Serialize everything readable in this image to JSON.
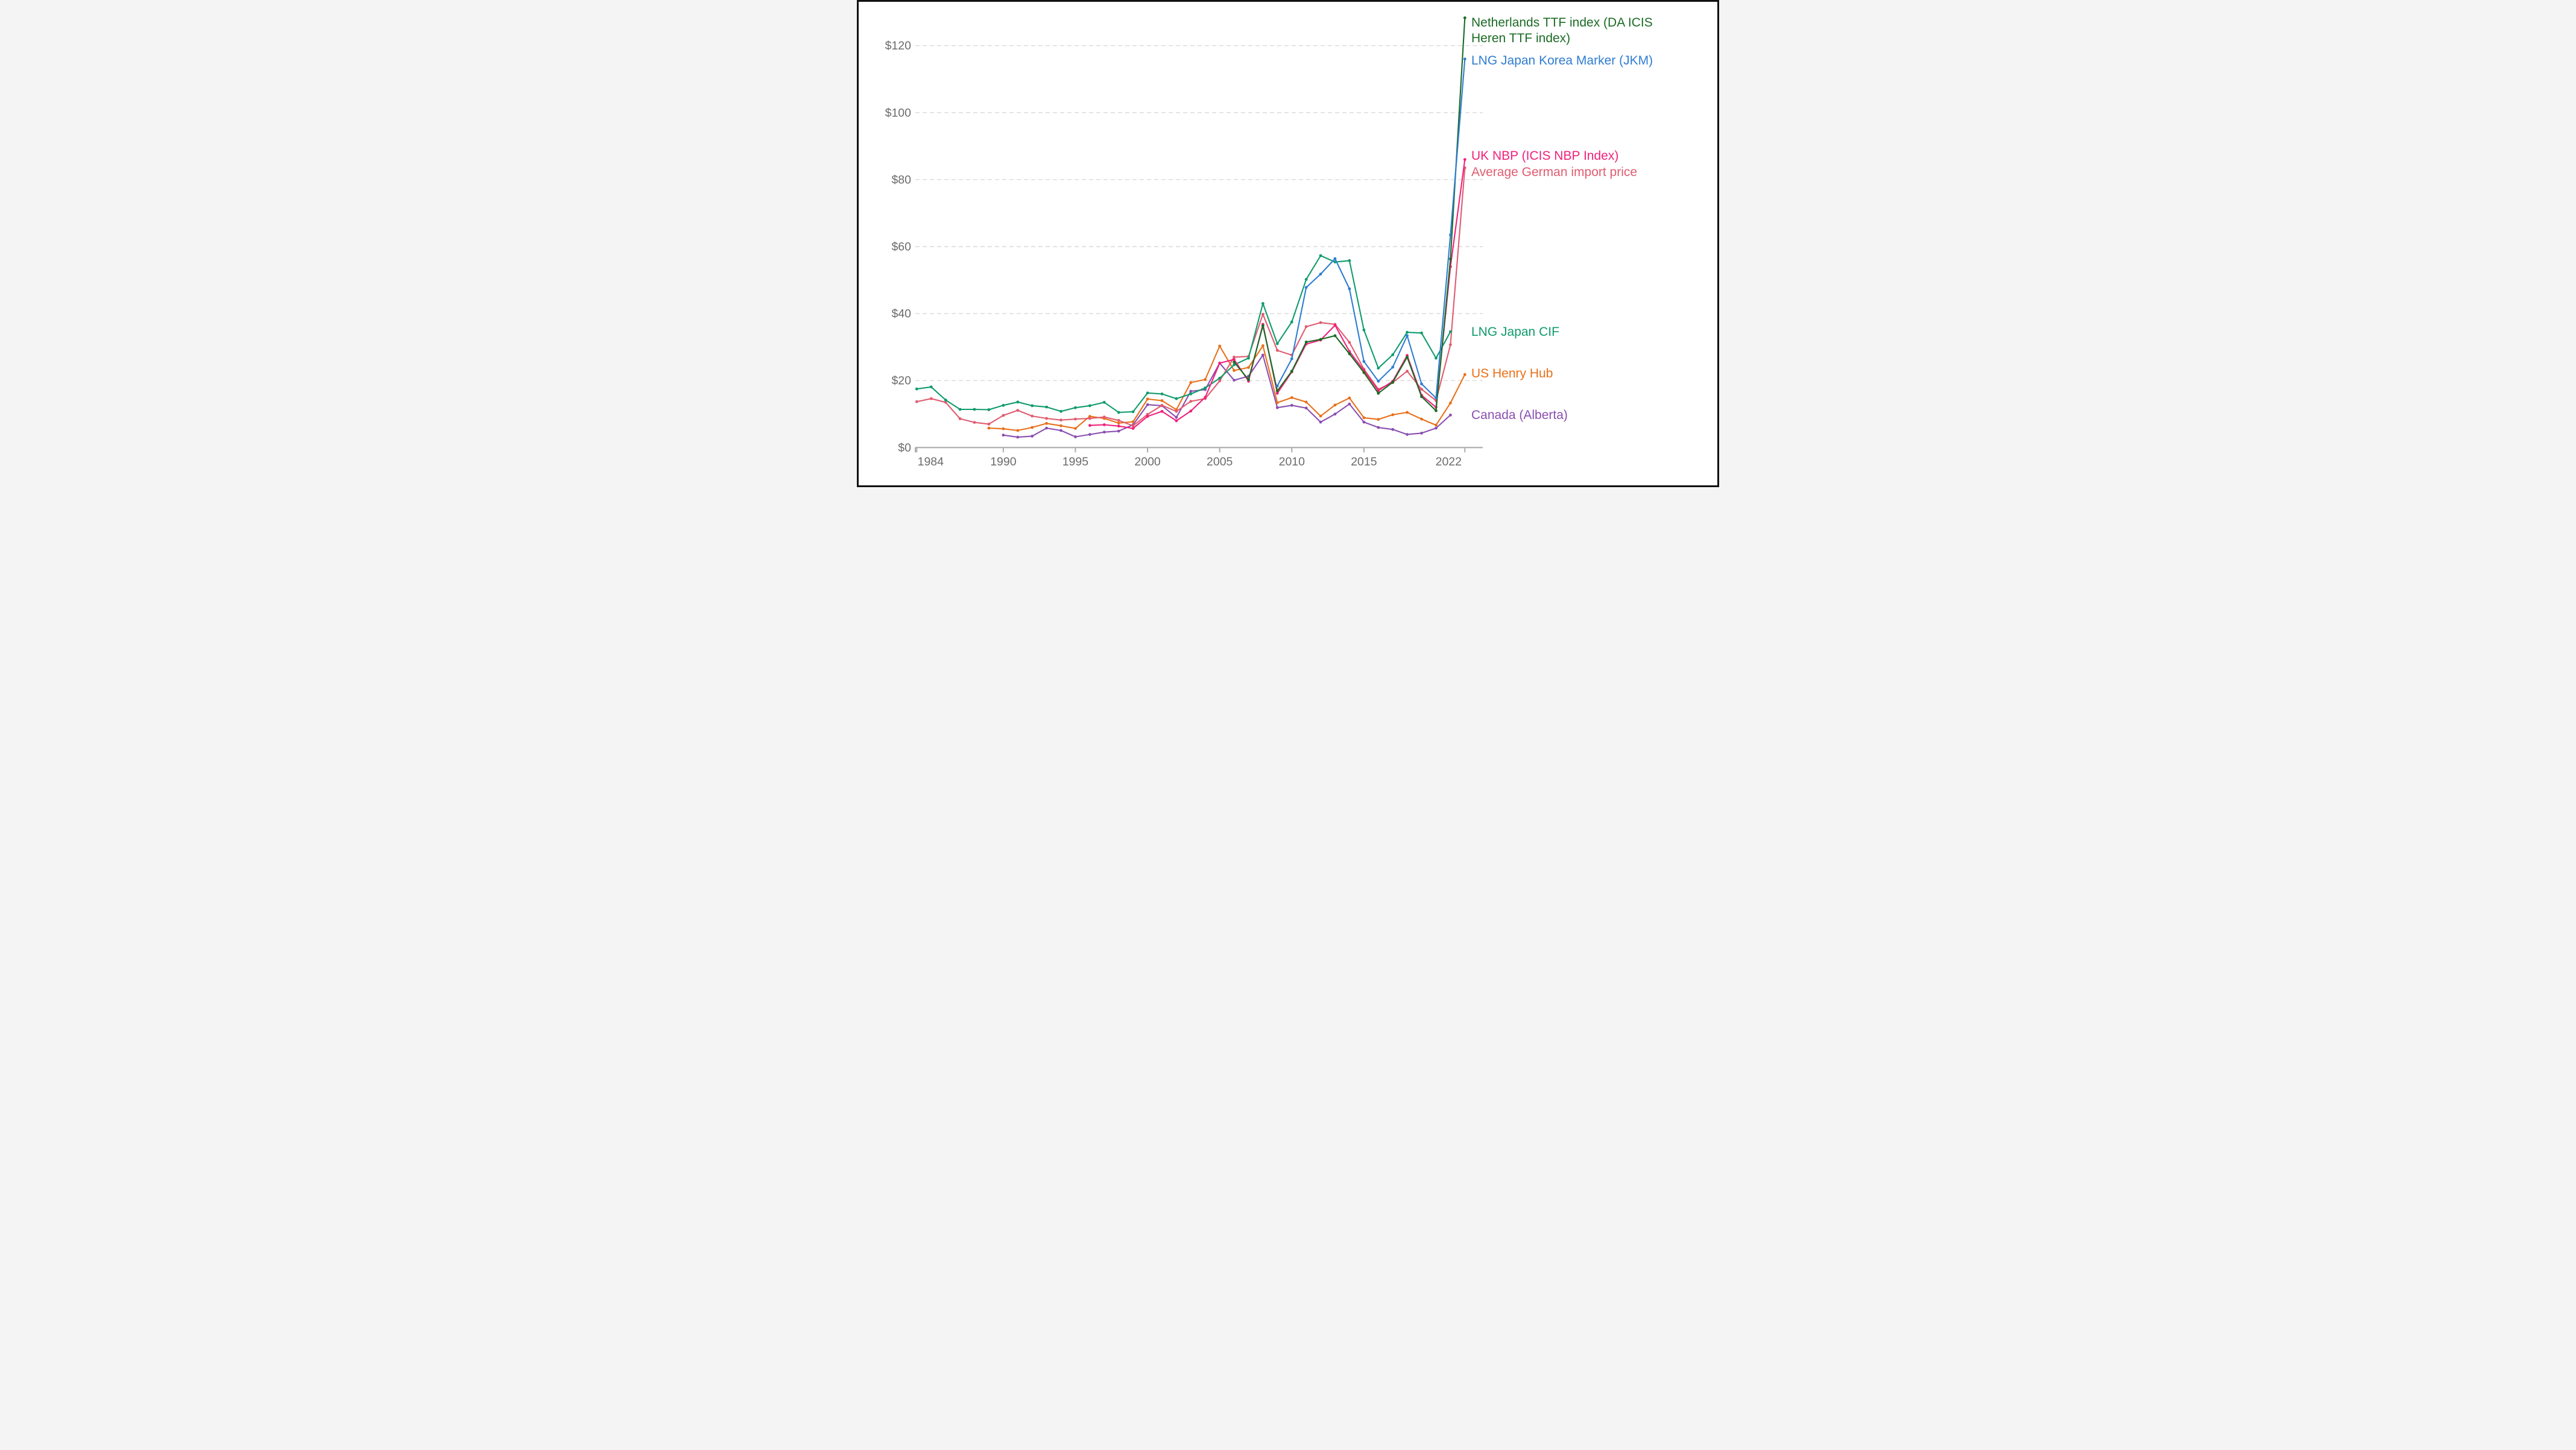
{
  "chart_data": {
    "type": "line",
    "title": "",
    "unit_prefix": "$",
    "x_axis": {
      "ticks": [
        1984,
        1990,
        1995,
        2000,
        2005,
        2010,
        2015,
        2022
      ],
      "tick_labels": [
        "1984",
        "1990",
        "1995",
        "2000",
        "2005",
        "2010",
        "2015",
        "2022"
      ],
      "range": [
        1983.8,
        2023.2
      ]
    },
    "y_axis": {
      "tick_values": [
        0,
        20,
        40,
        60,
        80,
        100,
        120
      ],
      "tick_labels": [
        "$0",
        "$20",
        "$40",
        "$60",
        "$80",
        "$100",
        "$120"
      ],
      "range": [
        0,
        129.5
      ],
      "grid": "dashed-horizontal"
    },
    "colors": {
      "axis": "#ababab",
      "tick_text": "#6b6b6b",
      "gridline": "#d9d9d9",
      "background": "#ffffff",
      "frame": "#111111"
    },
    "series": [
      {
        "slug": "netherlands-ttf",
        "name": "Netherlands TTF index (DA ICIS Heren TTF index)",
        "label_lines": [
          "Netherlands TTF index (DA ICIS",
          "Heren TTF index)"
        ],
        "color": "#1b6b24",
        "points": [
          [
            2006,
            25.5
          ],
          [
            2007,
            20.3
          ],
          [
            2008,
            36.4
          ],
          [
            2009,
            16.9
          ],
          [
            2010,
            22.8
          ],
          [
            2011,
            31.5
          ],
          [
            2012,
            32.3
          ],
          [
            2013,
            33.4
          ],
          [
            2014,
            28.0
          ],
          [
            2015,
            22.4
          ],
          [
            2016,
            16.2
          ],
          [
            2017,
            19.5
          ],
          [
            2018,
            27.0
          ],
          [
            2019,
            15.2
          ],
          [
            2020,
            11.0
          ],
          [
            2021,
            56.3
          ],
          [
            2022,
            128.3
          ]
        ]
      },
      {
        "slug": "lng-jkm",
        "name": "LNG Japan Korea Marker (JKM)",
        "label_lines": [
          "LNG Japan Korea Marker (JKM)"
        ],
        "color": "#2f7dd1",
        "points": [
          [
            2009,
            18.4
          ],
          [
            2010,
            26.5
          ],
          [
            2011,
            47.8
          ],
          [
            2012,
            51.8
          ],
          [
            2013,
            56.4
          ],
          [
            2014,
            47.4
          ],
          [
            2015,
            25.7
          ],
          [
            2016,
            19.8
          ],
          [
            2017,
            24.0
          ],
          [
            2018,
            33.4
          ],
          [
            2019,
            19.0
          ],
          [
            2020,
            14.8
          ],
          [
            2021,
            63.5
          ],
          [
            2022,
            116.0
          ]
        ]
      },
      {
        "slug": "uk-nbp",
        "name": "UK NBP (ICIS NBP Index)",
        "label_lines": [
          "UK NBP (ICIS NBP Index)"
        ],
        "color": "#f0217b",
        "points": [
          [
            1996,
            6.6
          ],
          [
            1997,
            6.8
          ],
          [
            1998,
            6.4
          ],
          [
            1999,
            5.7
          ],
          [
            2000,
            9.3
          ],
          [
            2001,
            10.8
          ],
          [
            2002,
            8.0
          ],
          [
            2003,
            10.9
          ],
          [
            2004,
            15.0
          ],
          [
            2005,
            25.2
          ],
          [
            2006,
            26.3
          ],
          [
            2007,
            19.8
          ],
          [
            2008,
            36.8
          ],
          [
            2009,
            16.2
          ],
          [
            2010,
            22.6
          ],
          [
            2011,
            30.9
          ],
          [
            2012,
            32.1
          ],
          [
            2013,
            36.5
          ],
          [
            2014,
            28.7
          ],
          [
            2015,
            23.0
          ],
          [
            2016,
            17.0
          ],
          [
            2017,
            19.8
          ],
          [
            2018,
            27.5
          ],
          [
            2019,
            15.6
          ],
          [
            2020,
            12.0
          ],
          [
            2021,
            54.0
          ],
          [
            2022,
            86.0
          ]
        ]
      },
      {
        "slug": "average-german-import-price",
        "name": "Average German import price",
        "label_lines": [
          "Average German import price"
        ],
        "color": "#e05c70",
        "points": [
          [
            1984,
            13.7
          ],
          [
            1985,
            14.6
          ],
          [
            1986,
            13.5
          ],
          [
            1987,
            8.6
          ],
          [
            1988,
            7.5
          ],
          [
            1989,
            7.0
          ],
          [
            1990,
            9.6
          ],
          [
            1991,
            11.1
          ],
          [
            1992,
            9.4
          ],
          [
            1993,
            8.7
          ],
          [
            1994,
            8.2
          ],
          [
            1995,
            8.5
          ],
          [
            1996,
            8.7
          ],
          [
            1997,
            9.1
          ],
          [
            1998,
            8.1
          ],
          [
            1999,
            6.5
          ],
          [
            2000,
            9.9
          ],
          [
            2001,
            12.6
          ],
          [
            2002,
            10.8
          ],
          [
            2003,
            13.8
          ],
          [
            2004,
            14.6
          ],
          [
            2005,
            19.9
          ],
          [
            2006,
            27.0
          ],
          [
            2007,
            27.2
          ],
          [
            2008,
            39.8
          ],
          [
            2009,
            29.0
          ],
          [
            2010,
            27.6
          ],
          [
            2011,
            36.1
          ],
          [
            2012,
            37.3
          ],
          [
            2013,
            36.8
          ],
          [
            2014,
            31.4
          ],
          [
            2015,
            23.4
          ],
          [
            2016,
            17.4
          ],
          [
            2017,
            19.4
          ],
          [
            2018,
            22.8
          ],
          [
            2019,
            17.4
          ],
          [
            2020,
            14.0
          ],
          [
            2021,
            30.7
          ],
          [
            2022,
            83.5
          ]
        ]
      },
      {
        "slug": "lng-japan-cif",
        "name": "LNG Japan CIF",
        "label_lines": [
          "LNG Japan CIF"
        ],
        "color": "#0f9b6c",
        "points": [
          [
            1984,
            17.5
          ],
          [
            1985,
            18.1
          ],
          [
            1986,
            14.2
          ],
          [
            1987,
            11.4
          ],
          [
            1988,
            11.4
          ],
          [
            1989,
            11.3
          ],
          [
            1990,
            12.6
          ],
          [
            1991,
            13.6
          ],
          [
            1992,
            12.5
          ],
          [
            1993,
            12.1
          ],
          [
            1994,
            10.8
          ],
          [
            1995,
            11.9
          ],
          [
            1996,
            12.5
          ],
          [
            1997,
            13.5
          ],
          [
            1998,
            10.5
          ],
          [
            1999,
            10.7
          ],
          [
            2000,
            16.3
          ],
          [
            2001,
            16.0
          ],
          [
            2002,
            14.6
          ],
          [
            2003,
            16.0
          ],
          [
            2004,
            17.8
          ],
          [
            2005,
            20.7
          ],
          [
            2006,
            24.7
          ],
          [
            2007,
            26.7
          ],
          [
            2008,
            43.0
          ],
          [
            2009,
            31.0
          ],
          [
            2010,
            37.5
          ],
          [
            2011,
            50.2
          ],
          [
            2012,
            57.3
          ],
          [
            2013,
            55.4
          ],
          [
            2014,
            55.8
          ],
          [
            2015,
            35.1
          ],
          [
            2016,
            23.7
          ],
          [
            2017,
            27.7
          ],
          [
            2018,
            34.4
          ],
          [
            2019,
            34.2
          ],
          [
            2020,
            26.7
          ],
          [
            2021,
            34.6
          ]
        ]
      },
      {
        "slug": "us-henry-hub",
        "name": "US Henry Hub",
        "label_lines": [
          "US Henry Hub"
        ],
        "color": "#e8701a",
        "points": [
          [
            1989,
            5.8
          ],
          [
            1990,
            5.6
          ],
          [
            1991,
            5.1
          ],
          [
            1992,
            6.0
          ],
          [
            1993,
            7.2
          ],
          [
            1994,
            6.5
          ],
          [
            1995,
            5.7
          ],
          [
            1996,
            9.3
          ],
          [
            1997,
            8.7
          ],
          [
            1998,
            7.3
          ],
          [
            1999,
            7.7
          ],
          [
            2000,
            14.5
          ],
          [
            2001,
            14.0
          ],
          [
            2002,
            11.3
          ],
          [
            2003,
            19.4
          ],
          [
            2004,
            20.3
          ],
          [
            2005,
            30.3
          ],
          [
            2006,
            23.0
          ],
          [
            2007,
            23.9
          ],
          [
            2008,
            30.4
          ],
          [
            2009,
            13.4
          ],
          [
            2010,
            14.9
          ],
          [
            2011,
            13.6
          ],
          [
            2012,
            9.4
          ],
          [
            2013,
            12.7
          ],
          [
            2014,
            14.8
          ],
          [
            2015,
            8.9
          ],
          [
            2016,
            8.4
          ],
          [
            2017,
            9.8
          ],
          [
            2018,
            10.5
          ],
          [
            2019,
            8.5
          ],
          [
            2020,
            6.7
          ],
          [
            2021,
            13.3
          ],
          [
            2022,
            21.8
          ]
        ]
      },
      {
        "slug": "canada-alberta",
        "name": "Canada (Alberta)",
        "label_lines": [
          "Canada (Alberta)"
        ],
        "color": "#8a4fb0",
        "points": [
          [
            1990,
            3.7
          ],
          [
            1991,
            3.1
          ],
          [
            1992,
            3.4
          ],
          [
            1993,
            5.8
          ],
          [
            1994,
            5.1
          ],
          [
            1995,
            3.2
          ],
          [
            1996,
            3.9
          ],
          [
            1997,
            4.6
          ],
          [
            1998,
            4.9
          ],
          [
            1999,
            6.8
          ],
          [
            2000,
            12.8
          ],
          [
            2001,
            12.5
          ],
          [
            2002,
            9.0
          ],
          [
            2003,
            16.8
          ],
          [
            2004,
            17.3
          ],
          [
            2005,
            25.2
          ],
          [
            2006,
            20.1
          ],
          [
            2007,
            21.3
          ],
          [
            2008,
            27.6
          ],
          [
            2009,
            11.9
          ],
          [
            2010,
            12.6
          ],
          [
            2011,
            11.8
          ],
          [
            2012,
            7.6
          ],
          [
            2013,
            10.0
          ],
          [
            2014,
            13.0
          ],
          [
            2015,
            7.6
          ],
          [
            2016,
            6.0
          ],
          [
            2017,
            5.4
          ],
          [
            2018,
            3.9
          ],
          [
            2019,
            4.3
          ],
          [
            2020,
            5.8
          ],
          [
            2021,
            9.7
          ]
        ]
      }
    ]
  }
}
